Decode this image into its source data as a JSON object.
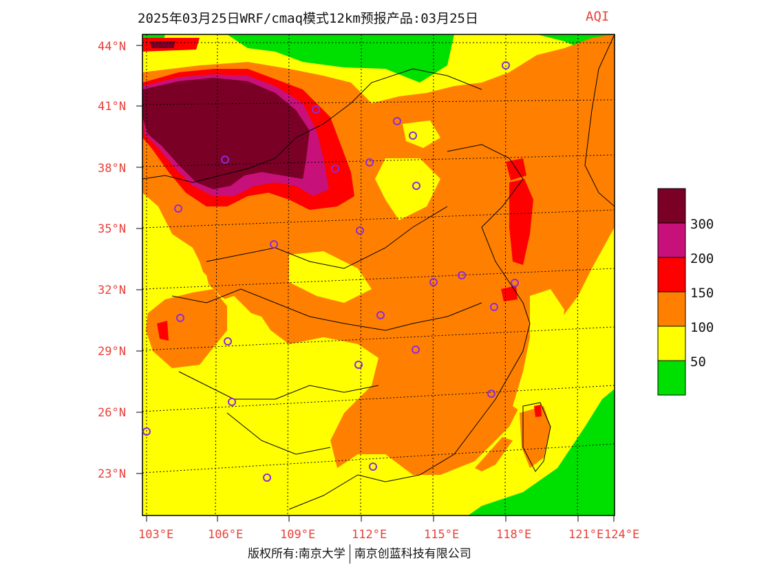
{
  "title": "2025年03月25日WRF/cmaq模式12km预报产品:03月25日",
  "product_label": "AQI",
  "lat_labels": [
    "44°N",
    "41°N",
    "38°N",
    "35°N",
    "32°N",
    "29°N",
    "26°N",
    "23°N"
  ],
  "lon_labels": [
    "103°E",
    "106°E",
    "109°E",
    "112°E",
    "115°E",
    "118°E",
    "121°E",
    "124°E"
  ],
  "legend": {
    "colors": [
      "#7a0026",
      "#c8107a",
      "#ff0000",
      "#ff8000",
      "#ffff00",
      "#00e000"
    ],
    "ticks": [
      "300",
      "200",
      "150",
      "100",
      "50"
    ]
  },
  "copyright_left": "版权所有:南京大学",
  "copyright_right": "南京创蓝科技有限公司",
  "map_colors": {
    "good": "#00e000",
    "moderate": "#ffff00",
    "usg": "#ff8000",
    "unhealthy": "#ff0000",
    "very_unhealthy": "#c8107a",
    "hazardous": "#7a0026",
    "site_marker": "#8a2be2"
  }
}
